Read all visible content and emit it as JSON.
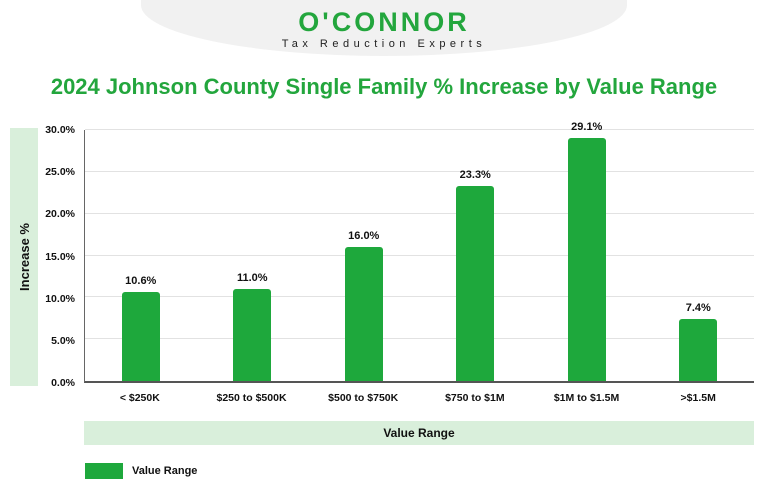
{
  "header": {
    "logo_text": "O'CONNOR",
    "tagline": "Tax Reduction Experts"
  },
  "title": "2024 Johnson County Single Family % Increase by Value Range",
  "chart_data": {
    "type": "bar",
    "title": "2024 Johnson County Single Family % Increase by Value Range",
    "categories": [
      "< $250K",
      "$250 to $500K",
      "$500 to $750K",
      "$750 to $1M",
      "$1M to $1.5M",
      ">$1.5M"
    ],
    "values": [
      10.6,
      11.0,
      16.0,
      23.3,
      29.1,
      7.4
    ],
    "value_labels": [
      "10.6%",
      "11.0%",
      "16.0%",
      "23.3%",
      "29.1%",
      "7.4%"
    ],
    "xlabel": "Value Range",
    "ylabel": "Increase %",
    "ylim": [
      0,
      30
    ],
    "ytick_step": 5,
    "ytick_labels": [
      "0.0%",
      "5.0%",
      "10.0%",
      "15.0%",
      "20.0%",
      "25.0%",
      "30.0%"
    ],
    "grid": true,
    "legend_position": "bottom-left",
    "bar_color": "#1ea83c",
    "legend": [
      {
        "label": "Value Range",
        "color": "#1ea83c"
      }
    ]
  },
  "colors": {
    "brand_green": "#23a63d",
    "bar_green": "#1ea83c",
    "light_green_band": "#d9efdb",
    "gridline": "#e2e2e2",
    "axis": "#555555",
    "text_dark": "#111111",
    "header_blob": "#f1f1f1"
  }
}
